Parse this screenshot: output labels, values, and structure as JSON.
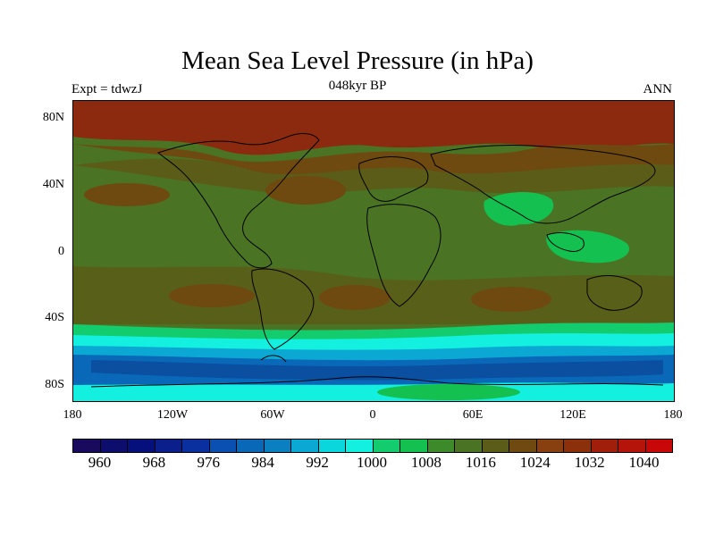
{
  "title": "Mean Sea Level Pressure (in hPa)",
  "left_label": "Expt = tdwzJ",
  "center_label": "048kyr BP",
  "right_label": "ANN",
  "lat_ticks": [
    "80N",
    "40N",
    "0",
    "40S",
    "80S"
  ],
  "lon_ticks": [
    "180",
    "120W",
    "60W",
    "0",
    "60E",
    "120E",
    "180"
  ],
  "colorbar": {
    "colors": [
      "#1a0a5e",
      "#0d0d6e",
      "#06107c",
      "#0a1f8c",
      "#0a2f9e",
      "#0a50b0",
      "#0a68b8",
      "#0b80c0",
      "#0aa8d2",
      "#0ad7dc",
      "#14f0e0",
      "#12cc6e",
      "#14c050",
      "#3c8a2a",
      "#4a7424",
      "#5a5c18",
      "#6e4a10",
      "#884010",
      "#8c300c",
      "#a01e0a",
      "#b4140a",
      "#c80808"
    ],
    "labels": [
      "960",
      "968",
      "976",
      "984",
      "992",
      "1000",
      "1008",
      "1016",
      "1024",
      "1032",
      "1040"
    ]
  },
  "colors": {
    "deep_red": "#8c2a10",
    "brown": "#6e4a10",
    "olive": "#5a5c18",
    "green": "#4a7424",
    "light_green": "#14c050",
    "cyan": "#14f0e0",
    "light_blue": "#0aa8d2",
    "blue": "#0a68b8",
    "dark_blue": "#0a4fa0"
  }
}
